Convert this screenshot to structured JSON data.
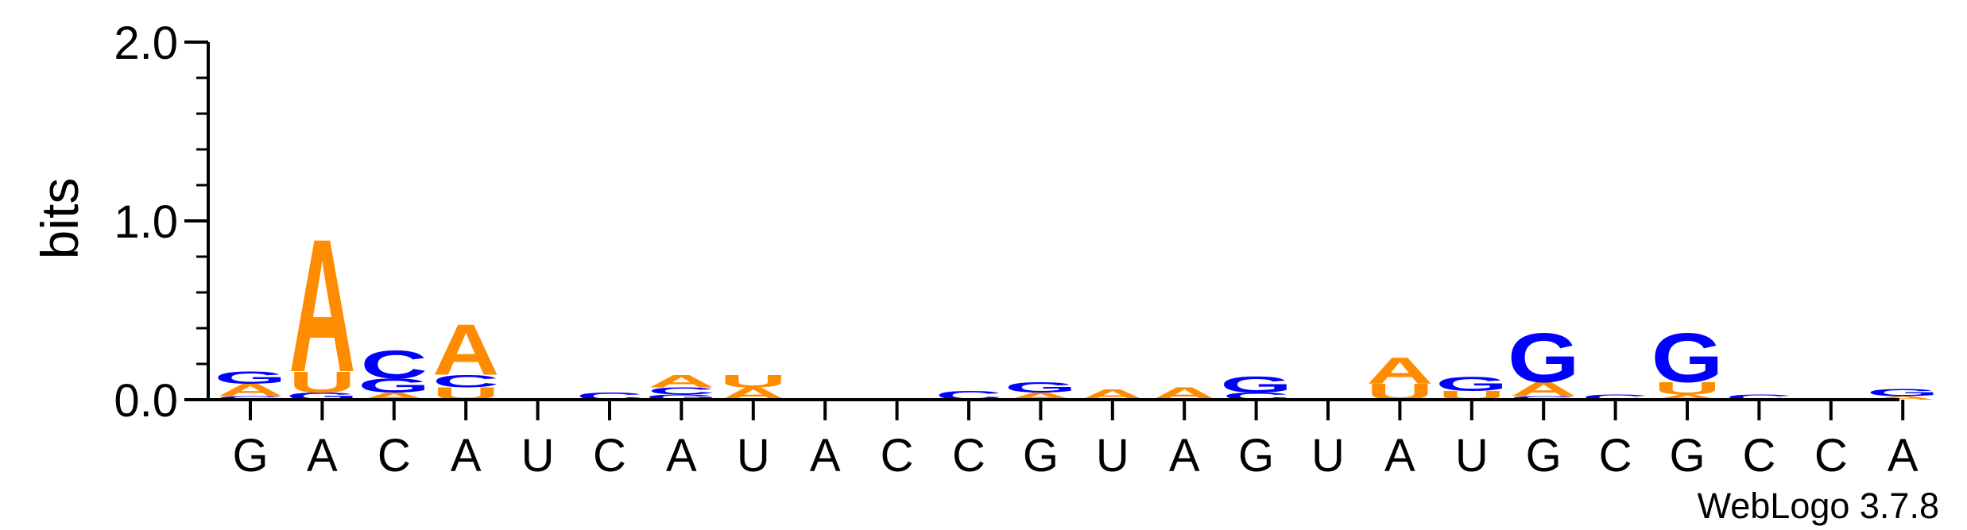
{
  "chart_data": {
    "type": "sequence-logo",
    "ylabel": "bits",
    "ylim": [
      0,
      2.0
    ],
    "yticks": [
      "0.0",
      "1.0",
      "2.0"
    ],
    "colors": {
      "A": "#ff8c00",
      "U": "#ff8c00",
      "G": "#0000ff",
      "C": "#0000ff"
    },
    "watermark": "WebLogo 3.7.8",
    "positions": [
      {
        "label": "G",
        "stack": [
          {
            "letter": "C",
            "bits": 0.02
          },
          {
            "letter": "A",
            "bits": 0.07
          },
          {
            "letter": "G",
            "bits": 0.07
          }
        ]
      },
      {
        "label": "A",
        "stack": [
          {
            "letter": "G",
            "bits": 0.04
          },
          {
            "letter": "U",
            "bits": 0.12
          },
          {
            "letter": "A",
            "bits": 0.76
          }
        ]
      },
      {
        "label": "C",
        "stack": [
          {
            "letter": "A",
            "bits": 0.04
          },
          {
            "letter": "G",
            "bits": 0.08
          },
          {
            "letter": "C",
            "bits": 0.16
          }
        ]
      },
      {
        "label": "A",
        "stack": [
          {
            "letter": "U",
            "bits": 0.07
          },
          {
            "letter": "C",
            "bits": 0.07
          },
          {
            "letter": "A",
            "bits": 0.29
          }
        ]
      },
      {
        "label": "U",
        "stack": []
      },
      {
        "label": "C",
        "stack": [
          {
            "letter": "C",
            "bits": 0.04
          }
        ]
      },
      {
        "label": "A",
        "stack": [
          {
            "letter": "G",
            "bits": 0.03
          },
          {
            "letter": "C",
            "bits": 0.04
          },
          {
            "letter": "A",
            "bits": 0.07
          }
        ]
      },
      {
        "label": "U",
        "stack": [
          {
            "letter": "A",
            "bits": 0.07
          },
          {
            "letter": "U",
            "bits": 0.07
          }
        ]
      },
      {
        "label": "A",
        "stack": []
      },
      {
        "label": "C",
        "stack": []
      },
      {
        "label": "C",
        "stack": [
          {
            "letter": "C",
            "bits": 0.05
          }
        ]
      },
      {
        "label": "G",
        "stack": [
          {
            "letter": "A",
            "bits": 0.04
          },
          {
            "letter": "G",
            "bits": 0.06
          }
        ]
      },
      {
        "label": "U",
        "stack": [
          {
            "letter": "A",
            "bits": 0.06
          }
        ]
      },
      {
        "label": "A",
        "stack": [
          {
            "letter": "A",
            "bits": 0.07
          }
        ]
      },
      {
        "label": "G",
        "stack": [
          {
            "letter": "C",
            "bits": 0.04
          },
          {
            "letter": "G",
            "bits": 0.09
          }
        ]
      },
      {
        "label": "U",
        "stack": []
      },
      {
        "label": "A",
        "stack": [
          {
            "letter": "U",
            "bits": 0.09
          },
          {
            "letter": "A",
            "bits": 0.15
          }
        ]
      },
      {
        "label": "U",
        "stack": [
          {
            "letter": "U",
            "bits": 0.05
          },
          {
            "letter": "G",
            "bits": 0.08
          }
        ]
      },
      {
        "label": "G",
        "stack": [
          {
            "letter": "C",
            "bits": 0.02
          },
          {
            "letter": "A",
            "bits": 0.08
          },
          {
            "letter": "G",
            "bits": 0.28
          }
        ]
      },
      {
        "label": "C",
        "stack": [
          {
            "letter": "C",
            "bits": 0.03
          }
        ]
      },
      {
        "label": "G",
        "stack": [
          {
            "letter": "A",
            "bits": 0.03
          },
          {
            "letter": "U",
            "bits": 0.07
          },
          {
            "letter": "G",
            "bits": 0.28
          }
        ]
      },
      {
        "label": "C",
        "stack": [
          {
            "letter": "C",
            "bits": 0.03
          }
        ]
      },
      {
        "label": "C",
        "stack": []
      },
      {
        "label": "A",
        "stack": [
          {
            "letter": "A",
            "bits": 0.02
          },
          {
            "letter": "G",
            "bits": 0.04
          }
        ]
      }
    ]
  }
}
